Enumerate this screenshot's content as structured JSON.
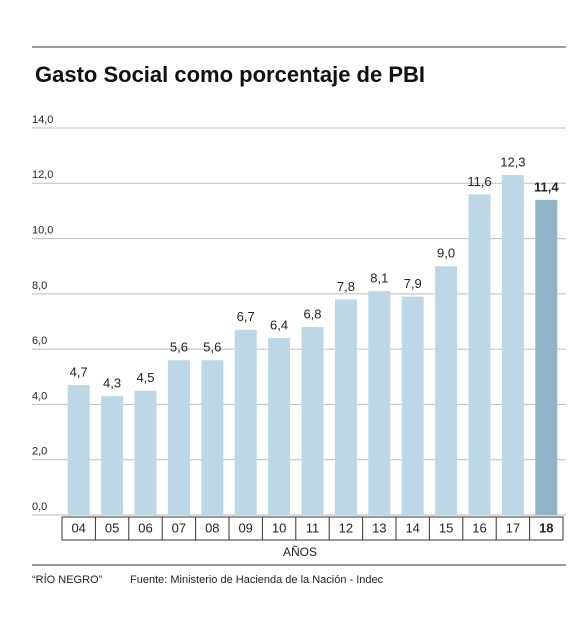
{
  "chart_data": {
    "type": "bar",
    "title": "Gasto Social como porcentaje de PBI",
    "x_label": "AÑOS",
    "source_note": "“RÍO NEGRO”",
    "source": "Fuente: Ministerio de Hacienda de la Nación - Indec",
    "categories": [
      "04",
      "05",
      "06",
      "07",
      "08",
      "09",
      "10",
      "11",
      "12",
      "13",
      "14",
      "15",
      "16",
      "17",
      "18"
    ],
    "values": [
      4.7,
      4.3,
      4.5,
      5.6,
      5.6,
      6.7,
      6.4,
      6.8,
      7.8,
      8.1,
      7.9,
      9.0,
      11.6,
      12.3,
      11.4
    ],
    "value_labels": [
      "4,7",
      "4,3",
      "4,5",
      "5,6",
      "5,6",
      "6,7",
      "6,4",
      "6,8",
      "7,8",
      "8,1",
      "7,9",
      "9,0",
      "11,6",
      "12,3",
      "11,4"
    ],
    "colors": [
      "#bcd8e6",
      "#bcd8e6",
      "#bcd8e6",
      "#bcd8e6",
      "#bcd8e6",
      "#bcd8e6",
      "#bcd8e6",
      "#bcd8e6",
      "#bcd8e6",
      "#bcd8e6",
      "#bcd8e6",
      "#bcd8e6",
      "#bcd8e6",
      "#bcd8e6",
      "#8fb4c7"
    ],
    "ylim": [
      0,
      14
    ],
    "yticks": [
      {
        "value": 0,
        "label": "0,0"
      },
      {
        "value": 2,
        "label": "2,0"
      },
      {
        "value": 4,
        "label": "4,0"
      },
      {
        "value": 6,
        "label": "6,0"
      },
      {
        "value": 8,
        "label": "8,0"
      },
      {
        "value": 10,
        "label": "10,0"
      },
      {
        "value": 12,
        "label": "12,0"
      },
      {
        "value": 14,
        "label": "14,0"
      }
    ],
    "grid": true
  }
}
